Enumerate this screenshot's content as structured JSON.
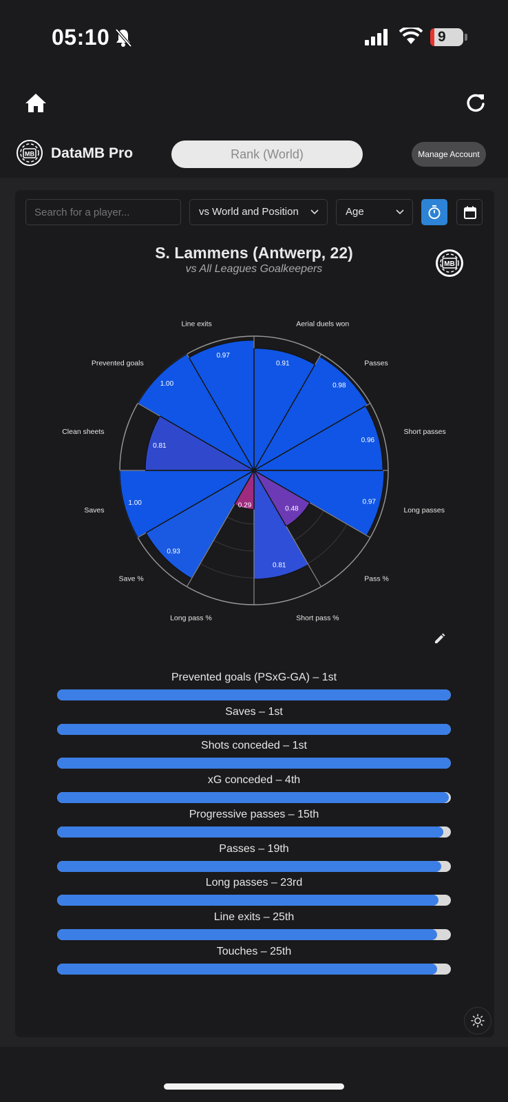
{
  "status_bar": {
    "time": "05:10",
    "battery": "9"
  },
  "header": {
    "brand": "DataMB Pro",
    "logo_text": "MB",
    "rank_button": "Rank (World)",
    "manage_button": "Manage Account"
  },
  "controls": {
    "search_placeholder": "Search for a player...",
    "compare_select": "vs World and Position",
    "age_select": "Age"
  },
  "chart": {
    "title": "S. Lammens (Antwerp, 22)",
    "subtitle": "vs All Leagues Goalkeepers",
    "logo_text": "MB"
  },
  "chart_data": {
    "type": "polar-bar",
    "title": "S. Lammens (Antwerp, 22)",
    "subtitle": "vs All Leagues Goalkeepers",
    "rlim": [
      0,
      1
    ],
    "grid": true,
    "categories": [
      "Aerial duels won",
      "Passes",
      "Short passes",
      "Long passes",
      "Pass %",
      "Short pass %",
      "Long pass %",
      "Save %",
      "Saves",
      "Clean sheets",
      "Prevented goals",
      "Line exits"
    ],
    "values": [
      0.91,
      0.98,
      0.96,
      0.97,
      0.48,
      0.81,
      0.29,
      0.93,
      1.0,
      0.81,
      1.0,
      0.97
    ],
    "value_labels": [
      "0.91",
      "0.98",
      "0.96",
      "0.97",
      "0.48",
      "0.81",
      "0.29",
      "0.93",
      "1.00",
      "0.81",
      "1.00",
      "0.97"
    ],
    "colors": [
      "#1055e5",
      "#1055e5",
      "#1055e5",
      "#1055e5",
      "#6d3ab6",
      "#2f4fd8",
      "#9f2b7f",
      "#1a5ae2",
      "#1055e5",
      "#3049cc",
      "#1055e5",
      "#1055e5"
    ]
  },
  "rankings": [
    {
      "label": "Prevented goals (PSxG-GA) – 1st",
      "fill": 1.0
    },
    {
      "label": "Saves – 1st",
      "fill": 1.0
    },
    {
      "label": "Shots conceded – 1st",
      "fill": 1.0
    },
    {
      "label": "xG conceded – 4th",
      "fill": 0.995
    },
    {
      "label": "Progressive passes – 15th",
      "fill": 0.98
    },
    {
      "label": "Passes – 19th",
      "fill": 0.975
    },
    {
      "label": "Long passes – 23rd",
      "fill": 0.968
    },
    {
      "label": "Line exits – 25th",
      "fill": 0.965
    },
    {
      "label": "Touches – 25th",
      "fill": 0.965
    }
  ]
}
